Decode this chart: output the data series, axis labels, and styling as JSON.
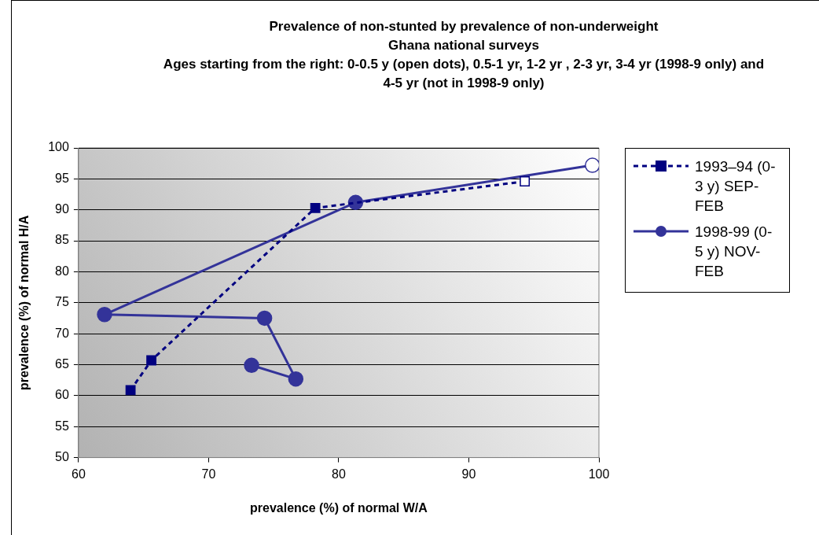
{
  "chart_data": {
    "type": "line",
    "title": "Prevalence of non-stunted by prevalence of non-underweight",
    "subtitle": "Ghana national surveys",
    "annotations": [
      "Ages starting from the right: 0-0.5 y (open dots), 0.5-1 yr, 1-2 yr , 2-3 yr, 3-4 yr (1998-9 only) and 4-5 yr (not in 1998-9 only)"
    ],
    "xlabel": "prevalence (%) of normal W/A",
    "ylabel": "prevalence (%) of normal H/A",
    "series": [
      {
        "name": "1993–94 (0-3 y) SEP-FEB",
        "color": "#000080",
        "marker": "square",
        "line_style": "dashed",
        "x": [
          94.3,
          78.2,
          65.6,
          64.0
        ],
        "values": [
          94.6,
          90.3,
          65.7,
          60.9
        ]
      },
      {
        "name": "1998-99 (0-5 y) NOV-FEB",
        "color": "#333399",
        "marker": "circle",
        "line_style": "solid",
        "x": [
          99.5,
          81.3,
          62.0,
          74.3,
          76.7,
          73.3
        ],
        "values": [
          97.2,
          91.2,
          73.1,
          72.5,
          62.7,
          64.9
        ]
      }
    ],
    "xlim": [
      60,
      100
    ],
    "xticks": [
      60,
      70,
      80,
      90,
      100
    ],
    "ylim": [
      50,
      100
    ],
    "yticks": [
      50,
      55,
      60,
      65,
      70,
      75,
      80,
      85,
      90,
      95,
      100
    ],
    "grid": "y",
    "legend": "right"
  }
}
